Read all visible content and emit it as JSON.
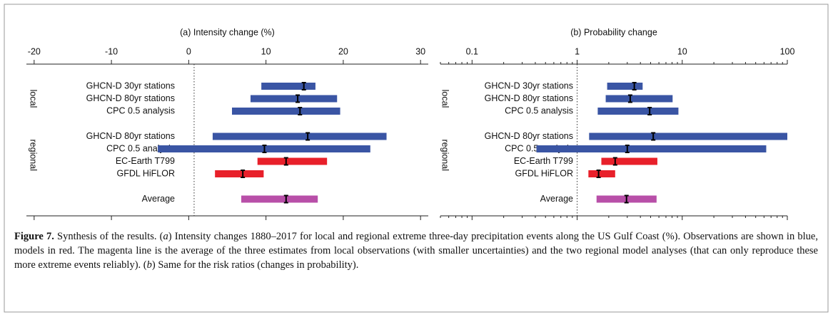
{
  "chart_data": [
    {
      "type": "range",
      "title": "(a) Intensity change (%)",
      "xscale": "linear",
      "xlim": [
        -21,
        31
      ],
      "xticks": [
        -20,
        -10,
        0,
        10,
        20,
        30
      ],
      "reference_line": 0.7,
      "groups": [
        {
          "name": "local",
          "categories": [
            "GHCN-D 30yr stations",
            "GHCN-D 80yr stations",
            "CPC 0.5 analysis"
          ],
          "low": [
            9.4,
            8.0,
            5.6
          ],
          "high": [
            16.4,
            19.2,
            19.6
          ],
          "values": [
            14.9,
            14.1,
            14.4
          ],
          "colors": [
            "#3a55a4",
            "#3a55a4",
            "#3a55a4"
          ]
        },
        {
          "name": "regional",
          "categories": [
            "GHCN-D 80yr stations",
            "CPC 0.5 analysis",
            "EC-Earth T799",
            "GFDL HiFLOR"
          ],
          "low": [
            3.1,
            -4.0,
            8.9,
            3.4
          ],
          "high": [
            25.6,
            23.5,
            17.9,
            9.7
          ],
          "values": [
            15.4,
            9.8,
            12.6,
            7.0
          ],
          "colors": [
            "#3a55a4",
            "#3a55a4",
            "#e8202a",
            "#e8202a"
          ]
        },
        {
          "name": null,
          "categories": [
            "Average"
          ],
          "low": [
            6.8
          ],
          "high": [
            16.7
          ],
          "values": [
            12.6
          ],
          "colors": [
            "#b84fa8"
          ]
        }
      ]
    },
    {
      "type": "range",
      "title": "(b) Probability change",
      "xscale": "log",
      "minor_ticks": true,
      "xlim": [
        0.05,
        100
      ],
      "xticks": [
        0.1,
        1,
        10,
        100
      ],
      "reference_line": 1,
      "groups": [
        {
          "name": "local",
          "categories": [
            "GHCN-D 30yr stations",
            "GHCN-D 80yr stations",
            "CPC 0.5 analysis"
          ],
          "low": [
            1.93,
            1.87,
            1.57
          ],
          "high": [
            4.2,
            8.1,
            9.2
          ],
          "values": [
            3.5,
            3.2,
            4.9
          ],
          "colors": [
            "#3a55a4",
            "#3a55a4",
            "#3a55a4"
          ]
        },
        {
          "name": "regional",
          "categories": [
            "GHCN-D 80yr stations",
            "CPC 0.5 analysis",
            "EC-Earth T799",
            "GFDL HiFLOR"
          ],
          "low": [
            1.3,
            0.41,
            1.7,
            1.28
          ],
          "high": [
            100,
            63,
            5.8,
            2.3
          ],
          "values": [
            5.3,
            3.0,
            2.3,
            1.6
          ],
          "colors": [
            "#3a55a4",
            "#3a55a4",
            "#e8202a",
            "#e8202a"
          ]
        },
        {
          "name": null,
          "categories": [
            "Average"
          ],
          "low": [
            1.53
          ],
          "high": [
            5.7
          ],
          "values": [
            2.95
          ],
          "colors": [
            "#b84fa8"
          ]
        }
      ]
    }
  ],
  "caption": [
    {
      "text": "Figure 7.",
      "style": "bold"
    },
    {
      "text": " Synthesis of the results. ("
    },
    {
      "text": "a",
      "style": "italic"
    },
    {
      "text": ") Intensity changes 1880–2017 for local and regional extreme three-day precipitation events along the US Gulf Coast (%). Observations are shown in blue, models in red. The magenta line is the average of the three estimates from local observations (with smaller uncertainties) and the two regional model analyses (that can only reproduce these more extreme events reliably). ("
    },
    {
      "text": "b",
      "style": "italic"
    },
    {
      "text": ") Same for the risk ratios (changes in probability)."
    }
  ]
}
